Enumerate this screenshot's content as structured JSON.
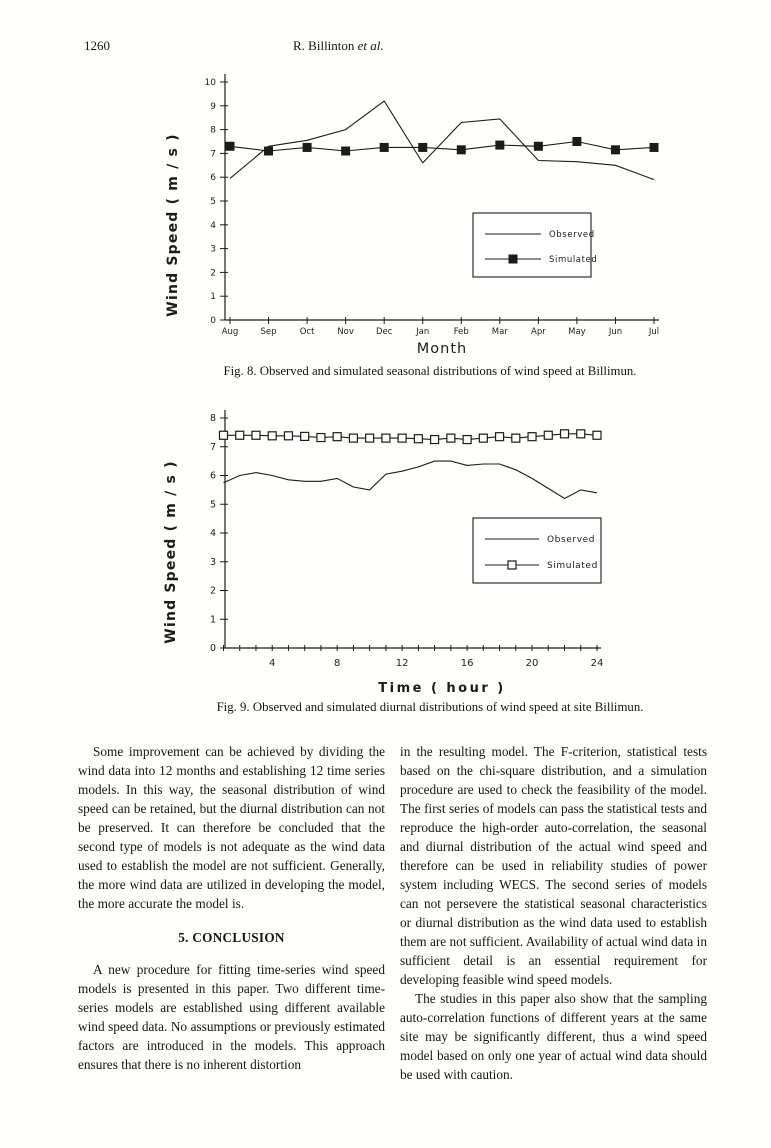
{
  "page": {
    "number": "1260",
    "running_head": "R. Billinton ",
    "running_head_etal": "et al."
  },
  "colors": {
    "ink": "#1b1b1b",
    "paper": "#ffffff"
  },
  "chart_data": [
    {
      "type": "line",
      "categories": [
        "Aug",
        "Sep",
        "Oct",
        "Nov",
        "Dec",
        "Jan",
        "Feb",
        "Mar",
        "Apr",
        "May",
        "Jun",
        "Jul"
      ],
      "series": [
        {
          "name": "Observed",
          "marker": "none",
          "values": [
            5.95,
            7.3,
            7.55,
            8.0,
            9.2,
            6.6,
            8.3,
            8.45,
            6.7,
            6.65,
            6.5,
            5.9
          ]
        },
        {
          "name": "Simulated",
          "marker": "filled-square",
          "values": [
            7.3,
            7.1,
            7.25,
            7.1,
            7.25,
            7.25,
            7.15,
            7.35,
            7.3,
            7.5,
            7.15,
            7.25
          ]
        }
      ],
      "xlabel": "Month",
      "ylabel": "Wind Speed ( m / s )",
      "ylim": [
        0,
        10
      ],
      "yticks": [
        0,
        1,
        2,
        3,
        4,
        5,
        6,
        7,
        8,
        9,
        10
      ],
      "grid": false,
      "legend_position": "inside-right",
      "caption": "Fig. 8.  Observed and simulated seasonal distributions of wind speed at Billimun."
    },
    {
      "type": "line",
      "x": [
        1,
        2,
        3,
        4,
        5,
        6,
        7,
        8,
        9,
        10,
        11,
        12,
        13,
        14,
        15,
        16,
        17,
        18,
        19,
        20,
        21,
        22,
        23,
        24
      ],
      "series": [
        {
          "name": "Observed",
          "marker": "none",
          "values": [
            5.75,
            6.0,
            6.1,
            6.0,
            5.85,
            5.8,
            5.8,
            5.9,
            5.6,
            5.5,
            6.05,
            6.15,
            6.3,
            6.5,
            6.5,
            6.35,
            6.4,
            6.4,
            6.2,
            5.9,
            5.55,
            5.2,
            5.5,
            5.4
          ]
        },
        {
          "name": "Simulated",
          "marker": "open-square",
          "values": [
            7.4,
            7.4,
            7.4,
            7.38,
            7.38,
            7.36,
            7.32,
            7.35,
            7.3,
            7.3,
            7.3,
            7.3,
            7.28,
            7.25,
            7.3,
            7.25,
            7.3,
            7.35,
            7.3,
            7.35,
            7.4,
            7.45,
            7.45,
            7.4
          ]
        }
      ],
      "xlabel": "Time ( hour )",
      "ylabel": "Wind Speed ( m / s )",
      "ylim": [
        0,
        8
      ],
      "yticks": [
        0,
        1,
        2,
        3,
        4,
        5,
        6,
        7,
        8
      ],
      "xticks": [
        4,
        8,
        12,
        16,
        20,
        24
      ],
      "grid": false,
      "legend_position": "inside-right",
      "caption": "Fig. 9.  Observed and simulated diurnal distributions of wind speed at site Billimun."
    }
  ],
  "body": {
    "left": {
      "para1": "Some improvement can be achieved by dividing the wind data into 12 months and establishing 12 time series models. In this way, the seasonal distribution of wind speed can be retained, but the diurnal distribution can not be preserved. It can therefore be concluded that the second type of models is not adequate as the wind data used to establish the model are not sufficient. Generally, the more wind data are utilized in developing the model, the more accurate the model is.",
      "heading": "5. CONCLUSION",
      "para2": "A new procedure for fitting time-series wind speed models is presented in this paper. Two different time-series models are established using different available wind speed data. No assumptions or previously estimated factors are introduced in the models. This approach ensures that there is no inherent distortion"
    },
    "right": {
      "para1": "in the resulting model. The F-criterion, statistical tests based on the chi-square distribution, and a simulation procedure are used to check the feasibility of the model. The first series of models can pass the statistical tests and reproduce the high-order auto-correlation, the seasonal and diurnal distribution of the actual wind speed and therefore can be used in reliability studies of power system including WECS. The second series of models can not persevere the statistical seasonal characteristics or diurnal distribution as the wind data used to establish them are not sufficient. Availability of actual wind data in sufficient detail is an essential requirement for developing feasible wind speed models.",
      "para2": "The studies in this paper also show that the sampling auto-correlation functions of different years at the same site may be significantly different, thus a wind speed model based on only one year of actual wind data should be used with caution."
    }
  }
}
